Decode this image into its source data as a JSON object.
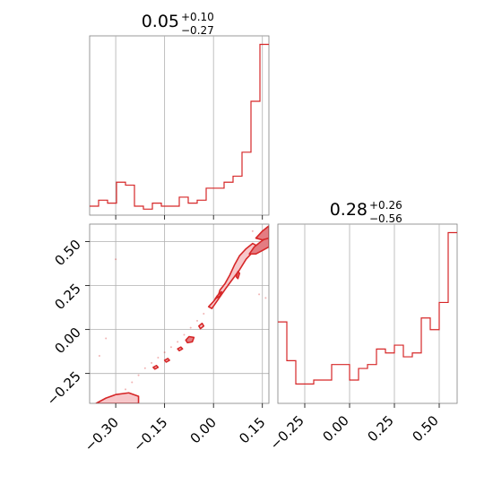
{
  "colors": {
    "accent": "#d62728",
    "fill_light": "#f7c7ca",
    "fill_dark": "#e47c82",
    "grid": "#b0b0b0",
    "frame": "#808080"
  },
  "chart_data": [
    {
      "type": "histogram",
      "panel": "top-left",
      "title_value": "0.05",
      "title_plus": "+0.10",
      "title_minus": "−0.27",
      "xlim": [
        -0.38,
        0.17
      ],
      "grid_x": [
        -0.3,
        -0.15,
        0.0,
        0.15
      ],
      "bin_edges": [
        -0.38,
        -0.3525,
        -0.325,
        -0.2975,
        -0.27,
        -0.2425,
        -0.215,
        -0.1875,
        -0.16,
        -0.1325,
        -0.105,
        -0.0775,
        -0.05,
        -0.0225,
        0.005,
        0.0325,
        0.06,
        0.0875,
        0.115,
        0.1425,
        0.17
      ],
      "counts": [
        3,
        5,
        4,
        11,
        10,
        3,
        2,
        4,
        3,
        3,
        6,
        4,
        5,
        9,
        9,
        11,
        13,
        21,
        38,
        57
      ]
    },
    {
      "type": "histogram",
      "panel": "bottom-right",
      "title_value": "0.28",
      "title_plus": "+0.26",
      "title_minus": "−0.56",
      "xlim": [
        -0.4,
        0.6
      ],
      "grid_x": [
        -0.25,
        0.0,
        0.25,
        0.5
      ],
      "bin_edges": [
        -0.4,
        -0.35,
        -0.3,
        -0.25,
        -0.2,
        -0.15,
        -0.1,
        -0.05,
        0.0,
        0.05,
        0.1,
        0.15,
        0.2,
        0.25,
        0.3,
        0.35,
        0.4,
        0.45,
        0.5,
        0.55,
        0.6
      ],
      "counts": [
        21,
        11,
        5,
        5,
        6,
        6,
        10,
        10,
        6,
        9,
        10,
        14,
        13,
        15,
        12,
        13,
        22,
        19,
        26,
        44
      ],
      "xticklabels": [
        "−0.25",
        "0.00",
        "0.25",
        "0.50"
      ]
    },
    {
      "type": "contour",
      "panel": "bottom-left",
      "xlim": [
        -0.38,
        0.17
      ],
      "ylim": [
        -0.42,
        0.6
      ],
      "xticks": [
        -0.3,
        -0.15,
        0.0,
        0.15
      ],
      "xticklabels": [
        "−0.30",
        "−0.15",
        "0.00",
        "0.15"
      ],
      "yticks": [
        -0.25,
        0.0,
        0.25,
        0.5
      ],
      "yticklabels": [
        "−0.25",
        "0.00",
        "0.25",
        "0.50"
      ],
      "scatter_points": [
        [
          -0.31,
          -0.4
        ],
        [
          -0.29,
          -0.38
        ],
        [
          -0.27,
          -0.34
        ],
        [
          -0.25,
          -0.3
        ],
        [
          -0.23,
          -0.26
        ],
        [
          -0.21,
          -0.22
        ],
        [
          -0.19,
          -0.19
        ],
        [
          -0.17,
          -0.16
        ],
        [
          -0.15,
          -0.13
        ],
        [
          -0.13,
          -0.1
        ],
        [
          -0.11,
          -0.07
        ],
        [
          -0.09,
          -0.03
        ],
        [
          -0.07,
          0.01
        ],
        [
          -0.05,
          0.05
        ],
        [
          -0.03,
          0.09
        ],
        [
          -0.01,
          0.14
        ],
        [
          0.01,
          0.19
        ],
        [
          0.03,
          0.24
        ],
        [
          0.05,
          0.29
        ],
        [
          0.07,
          0.34
        ],
        [
          0.09,
          0.39
        ],
        [
          0.11,
          0.44
        ],
        [
          0.13,
          0.48
        ],
        [
          0.15,
          0.52
        ],
        [
          -0.35,
          -0.15
        ],
        [
          -0.33,
          -0.05
        ],
        [
          -0.3,
          0.4
        ],
        [
          0.14,
          0.2
        ],
        [
          0.16,
          0.18
        ],
        [
          0.12,
          0.56
        ]
      ],
      "levels": [
        {
          "fill": "dark",
          "points": [
            [
              -0.34,
              -0.42
            ],
            [
              -0.32,
              -0.4
            ],
            [
              -0.27,
              -0.39
            ],
            [
              -0.25,
              -0.4
            ],
            [
              -0.25,
              -0.42
            ]
          ]
        },
        {
          "fill": "light",
          "points": [
            [
              -0.36,
              -0.42
            ],
            [
              -0.33,
              -0.39
            ],
            [
              -0.3,
              -0.37
            ],
            [
              -0.26,
              -0.36
            ],
            [
              -0.23,
              -0.38
            ],
            [
              -0.23,
              -0.42
            ]
          ]
        },
        {
          "fill": "light",
          "points": [
            [
              -0.185,
              -0.215
            ],
            [
              -0.175,
              -0.205
            ],
            [
              -0.17,
              -0.215
            ],
            [
              -0.18,
              -0.225
            ]
          ]
        },
        {
          "fill": "light",
          "points": [
            [
              -0.15,
              -0.175
            ],
            [
              -0.14,
              -0.165
            ],
            [
              -0.135,
              -0.175
            ],
            [
              -0.145,
              -0.185
            ]
          ]
        },
        {
          "fill": "light",
          "points": [
            [
              -0.11,
              -0.11
            ],
            [
              -0.1,
              -0.1
            ],
            [
              -0.095,
              -0.11
            ],
            [
              -0.105,
              -0.12
            ]
          ]
        },
        {
          "fill": "dark",
          "points": [
            [
              -0.085,
              -0.06
            ],
            [
              -0.075,
              -0.04
            ],
            [
              -0.06,
              -0.045
            ],
            [
              -0.065,
              -0.07
            ],
            [
              -0.08,
              -0.075
            ]
          ]
        },
        {
          "fill": "light",
          "points": [
            [
              -0.045,
              0.02
            ],
            [
              -0.035,
              0.035
            ],
            [
              -0.03,
              0.02
            ],
            [
              -0.04,
              0.005
            ]
          ]
        },
        {
          "fill": "light",
          "points": [
            [
              -0.015,
              0.13
            ],
            [
              0.0,
              0.16
            ],
            [
              0.015,
              0.195
            ],
            [
              0.02,
              0.225
            ],
            [
              0.035,
              0.26
            ],
            [
              0.05,
              0.31
            ],
            [
              0.065,
              0.37
            ],
            [
              0.08,
              0.42
            ],
            [
              0.1,
              0.46
            ],
            [
              0.12,
              0.49
            ],
            [
              0.13,
              0.48
            ],
            [
              0.12,
              0.44
            ],
            [
              0.1,
              0.4
            ],
            [
              0.08,
              0.34
            ],
            [
              0.06,
              0.29
            ],
            [
              0.04,
              0.24
            ],
            [
              0.025,
              0.2
            ],
            [
              0.01,
              0.16
            ],
            [
              -0.005,
              0.12
            ]
          ]
        },
        {
          "fill": "dark",
          "points": [
            [
              0.005,
              0.175
            ],
            [
              0.015,
              0.2
            ],
            [
              0.025,
              0.215
            ],
            [
              0.02,
              0.19
            ]
          ]
        },
        {
          "fill": "dark",
          "points": [
            [
              0.07,
              0.3
            ],
            [
              0.075,
              0.33
            ],
            [
              0.08,
              0.32
            ],
            [
              0.075,
              0.29
            ]
          ]
        },
        {
          "fill": "dark",
          "points": [
            [
              0.11,
              0.43
            ],
            [
              0.125,
              0.47
            ],
            [
              0.145,
              0.5
            ],
            [
              0.16,
              0.52
            ],
            [
              0.17,
              0.53
            ],
            [
              0.17,
              0.47
            ],
            [
              0.15,
              0.45
            ],
            [
              0.13,
              0.43
            ]
          ]
        },
        {
          "fill": "dark",
          "points": [
            [
              0.13,
              0.52
            ],
            [
              0.15,
              0.56
            ],
            [
              0.17,
              0.59
            ],
            [
              0.17,
              0.52
            ],
            [
              0.15,
              0.51
            ]
          ]
        }
      ]
    }
  ]
}
